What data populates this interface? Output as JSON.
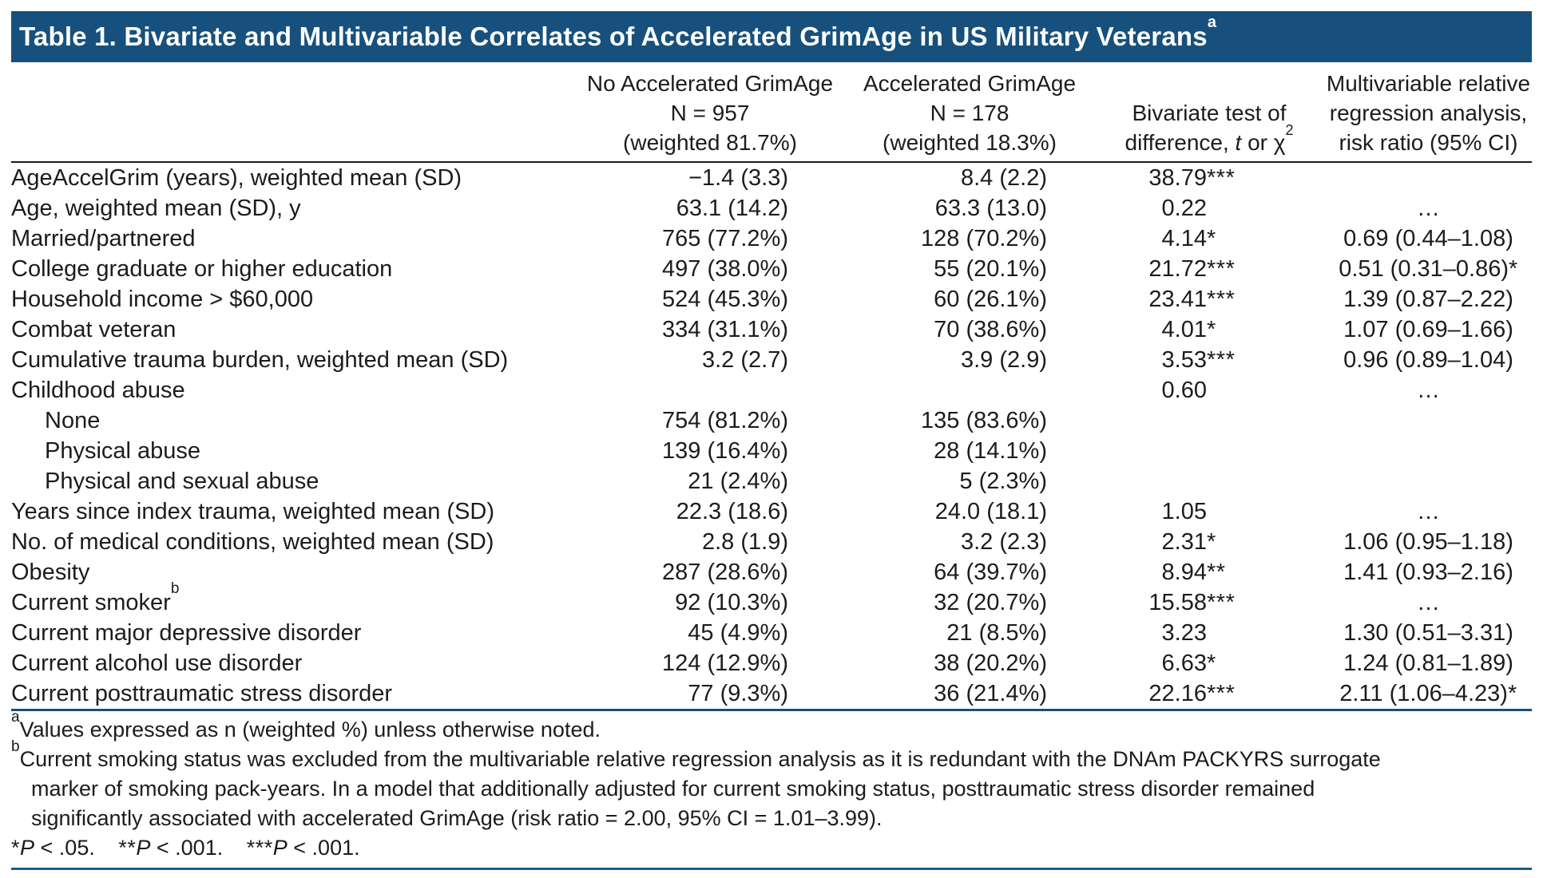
{
  "title": {
    "text": "Table 1. Bivariate and Multivariable Correlates of Accelerated GrimAge in US Military Veterans",
    "sup": "a"
  },
  "colors": {
    "title_bar": "#17507C",
    "rule_navy": "#1A4E78",
    "rule_blue": "#16608F",
    "text": "#1C1C1C",
    "title_text": "#FFFFFF"
  },
  "header": {
    "col1": {
      "line1": "No Accelerated GrimAge",
      "line2": "N = 957",
      "line3": "(weighted 81.7%)"
    },
    "col2": {
      "line1": "Accelerated GrimAge",
      "line2": "N = 178",
      "line3": "(weighted 18.3%)"
    },
    "col3": {
      "line1": "Bivariate test of",
      "line2_pre": "difference, ",
      "line2_t": "t",
      "line2_mid": " or χ",
      "line2_sup": "2"
    },
    "col4": {
      "line1": "Multivariable relative",
      "line2": "regression analysis,",
      "line3": "risk ratio (95% CI)"
    }
  },
  "rows": [
    {
      "label": "AgeAccelGrim (years), weighted mean (SD)",
      "no_accel": "−1.4 (3.3)",
      "accel": "8.4 (2.2)",
      "test_num": "38.79",
      "test_stars": "***",
      "rr": "",
      "rr_stars": ""
    },
    {
      "label": "Age, weighted mean (SD), y",
      "no_accel": "63.1 (14.2)",
      "accel": "63.3 (13.0)",
      "test_num": "0.22",
      "test_stars": "",
      "rr": "…",
      "rr_stars": ""
    },
    {
      "label": "Married/partnered",
      "no_accel": "765 (77.2%)",
      "accel": "128 (70.2%)",
      "test_num": "4.14",
      "test_stars": "*",
      "rr": "0.69 (0.44–1.08)",
      "rr_stars": ""
    },
    {
      "label": "College graduate or higher education",
      "no_accel": "497 (38.0%)",
      "accel": "55 (20.1%)",
      "test_num": "21.72",
      "test_stars": "***",
      "rr": "0.51 (0.31–0.86)",
      "rr_stars": "*"
    },
    {
      "label": "Household income > $60,000",
      "no_accel": "524 (45.3%)",
      "accel": "60 (26.1%)",
      "test_num": "23.41",
      "test_stars": "***",
      "rr": "1.39 (0.87–2.22)",
      "rr_stars": ""
    },
    {
      "label": "Combat veteran",
      "no_accel": "334 (31.1%)",
      "accel": "70 (38.6%)",
      "test_num": "4.01",
      "test_stars": "*",
      "rr": "1.07 (0.69–1.66)",
      "rr_stars": ""
    },
    {
      "label": "Cumulative trauma burden, weighted mean (SD)",
      "no_accel": "3.2 (2.7)",
      "accel": "3.9 (2.9)",
      "test_num": "3.53",
      "test_stars": "***",
      "rr": "0.96 (0.89–1.04)",
      "rr_stars": ""
    },
    {
      "label": "Childhood abuse",
      "no_accel": "",
      "accel": "",
      "test_num": "0.60",
      "test_stars": "",
      "rr": "…",
      "rr_stars": ""
    },
    {
      "label": "None",
      "no_accel": "754 (81.2%)",
      "accel": "135 (83.6%)",
      "test_num": "",
      "test_stars": "",
      "rr": "",
      "rr_stars": ""
    },
    {
      "label": "Physical abuse",
      "no_accel": "139 (16.4%)",
      "accel": "28 (14.1%)",
      "test_num": "",
      "test_stars": "",
      "rr": "",
      "rr_stars": ""
    },
    {
      "label": "Physical and sexual abuse",
      "no_accel": "21 (2.4%)",
      "accel": "5 (2.3%)",
      "test_num": "",
      "test_stars": "",
      "rr": "",
      "rr_stars": ""
    },
    {
      "label": "Years since index trauma, weighted mean (SD)",
      "no_accel": "22.3 (18.6)",
      "accel": "24.0 (18.1)",
      "test_num": "1.05",
      "test_stars": "",
      "rr": "…",
      "rr_stars": ""
    },
    {
      "label": "No. of medical conditions, weighted mean (SD)",
      "no_accel": "2.8 (1.9)",
      "accel": "3.2 (2.3)",
      "test_num": "2.31",
      "test_stars": "*",
      "rr": "1.06 (0.95–1.18)",
      "rr_stars": ""
    },
    {
      "label": "Obesity",
      "no_accel": "287 (28.6%)",
      "accel": "64 (39.7%)",
      "test_num": "8.94",
      "test_stars": "**",
      "rr": "1.41 (0.93–2.16)",
      "rr_stars": ""
    },
    {
      "label": "Current smoker",
      "label_sup": "b",
      "no_accel": "92 (10.3%)",
      "accel": "32 (20.7%)",
      "test_num": "15.58",
      "test_stars": "***",
      "rr": "…",
      "rr_stars": ""
    },
    {
      "label": "Current major depressive disorder",
      "no_accel": "45 (4.9%)",
      "accel": "21 (8.5%)",
      "test_num": "3.23",
      "test_stars": "",
      "rr": "1.30 (0.51–3.31)",
      "rr_stars": ""
    },
    {
      "label": "Current alcohol use disorder",
      "no_accel": "124 (12.9%)",
      "accel": "38 (20.2%)",
      "test_num": "6.63",
      "test_stars": "*",
      "rr": "1.24 (0.81–1.89)",
      "rr_stars": ""
    },
    {
      "label": "Current posttraumatic stress disorder",
      "no_accel": "77 (9.3%)",
      "accel": "36 (21.4%)",
      "test_num": "22.16",
      "test_stars": "***",
      "rr": "2.11 (1.06–4.23)",
      "rr_stars": "*"
    }
  ],
  "footnotes": {
    "a_sup": "a",
    "a_text": "Values expressed as n (weighted %) unless otherwise noted.",
    "b_sup": "b",
    "b_lines": [
      "Current smoking status was excluded from the multivariable relative regression analysis as it is redundant with the DNAm PACKYRS surrogate",
      "marker of smoking pack-years. In a model that additionally adjusted for current smoking status, posttraumatic stress disorder remained",
      "significantly associated with accelerated GrimAge (risk ratio = 2.00, 95% CI = 1.01–3.99)."
    ],
    "p_label": "P",
    "sig": [
      {
        "stars": "*",
        "rest": " < .05."
      },
      {
        "stars": "**",
        "rest": " < .001."
      },
      {
        "stars": "***",
        "rest": " < .001."
      }
    ]
  }
}
